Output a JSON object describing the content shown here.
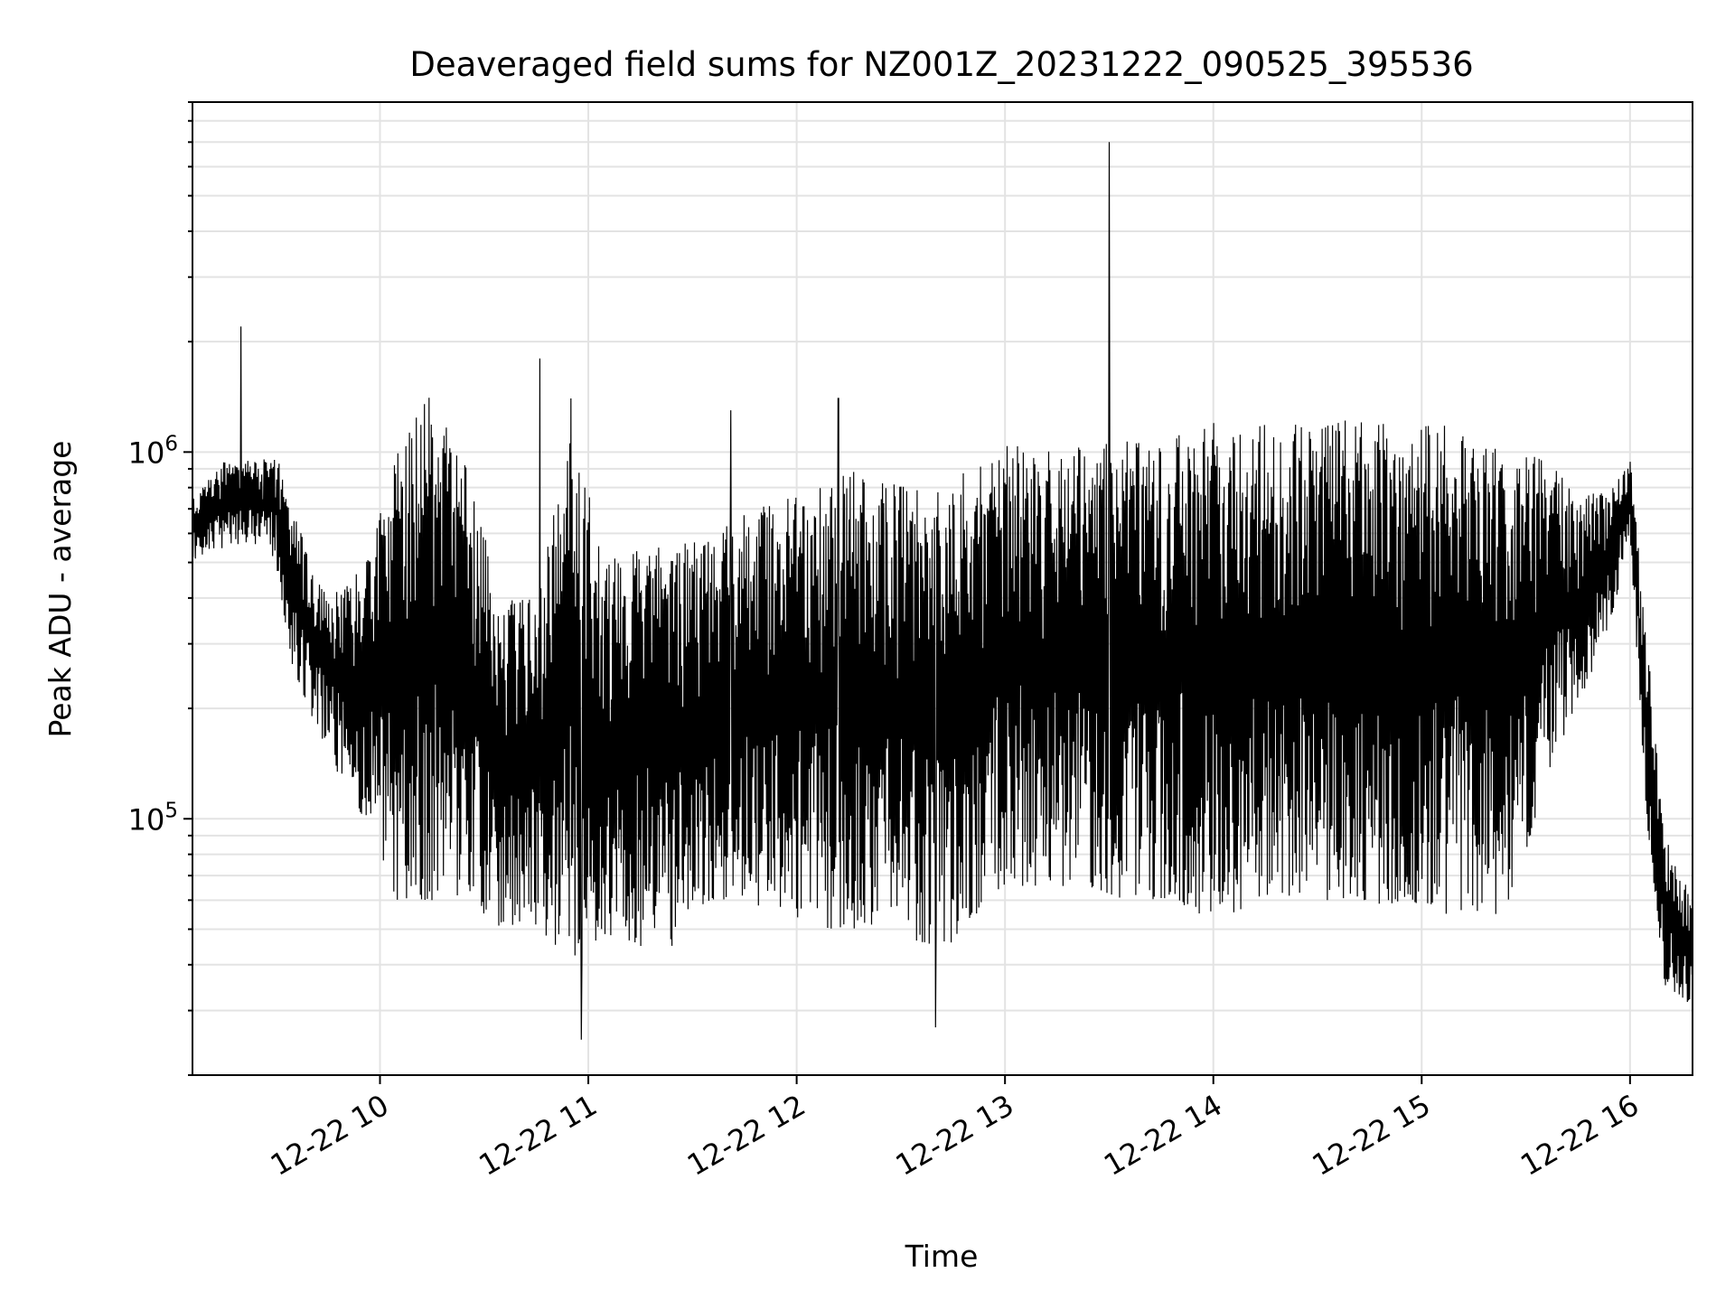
{
  "chart_data": {
    "type": "line",
    "title": "Deaveraged field sums for NZ001Z_20231222_090525_395536",
    "xlabel": "Time",
    "ylabel": "Peak ADU - average",
    "yscale": "log",
    "ylim": [
      20000,
      9000000
    ],
    "xlim": [
      "2023-12-22 09:06",
      "2023-12-22 16:18"
    ],
    "grid": true,
    "x_tick_labels": [
      "12-22 10",
      "12-22 11",
      "12-22 12",
      "12-22 13",
      "12-22 14",
      "12-22 15",
      "12-22 16"
    ],
    "y_tick_labels": [
      {
        "base": "10",
        "exp": "5",
        "value": 100000
      },
      {
        "base": "10",
        "exp": "6",
        "value": 1000000
      }
    ],
    "line_color": "#000000",
    "series": [
      {
        "sampling": "approximate per-interval envelope of a densely sampled signal",
        "x": [
          "2023-12-22 09:06",
          "2023-12-22 09:15",
          "2023-12-22 09:25",
          "2023-12-22 09:30",
          "2023-12-22 09:35",
          "2023-12-22 09:45",
          "2023-12-22 09:55",
          "2023-12-22 10:05",
          "2023-12-22 10:15",
          "2023-12-22 10:25",
          "2023-12-22 10:35",
          "2023-12-22 10:45",
          "2023-12-22 10:55",
          "2023-12-22 11:05",
          "2023-12-22 11:15",
          "2023-12-22 11:25",
          "2023-12-22 11:35",
          "2023-12-22 11:45",
          "2023-12-22 11:55",
          "2023-12-22 12:05",
          "2023-12-22 12:15",
          "2023-12-22 12:25",
          "2023-12-22 12:35",
          "2023-12-22 12:45",
          "2023-12-22 12:55",
          "2023-12-22 13:05",
          "2023-12-22 13:15",
          "2023-12-22 13:25",
          "2023-12-22 13:35",
          "2023-12-22 13:45",
          "2023-12-22 13:55",
          "2023-12-22 14:05",
          "2023-12-22 14:15",
          "2023-12-22 14:25",
          "2023-12-22 14:35",
          "2023-12-22 14:45",
          "2023-12-22 14:55",
          "2023-12-22 15:05",
          "2023-12-22 15:15",
          "2023-12-22 15:25",
          "2023-12-22 15:35",
          "2023-12-22 15:45",
          "2023-12-22 15:55",
          "2023-12-22 16:00",
          "2023-12-22 16:05",
          "2023-12-22 16:10",
          "2023-12-22 16:18"
        ],
        "y_high": [
          750000,
          950000,
          950000,
          1000000,
          700000,
          400000,
          500000,
          1000000,
          1500000,
          900000,
          400000,
          400000,
          1200000,
          500000,
          550000,
          550000,
          600000,
          700000,
          750000,
          800000,
          900000,
          850000,
          800000,
          850000,
          1000000,
          1100000,
          1000000,
          1050000,
          1100000,
          1150000,
          1200000,
          1200000,
          1200000,
          1200000,
          1250000,
          1200000,
          1200000,
          1200000,
          1150000,
          1000000,
          1000000,
          750000,
          800000,
          1000000,
          300000,
          90000,
          60000
        ],
        "y_low": [
          500000,
          550000,
          550000,
          500000,
          250000,
          150000,
          100000,
          60000,
          60000,
          60000,
          50000,
          50000,
          40000,
          45000,
          45000,
          45000,
          60000,
          60000,
          55000,
          50000,
          50000,
          45000,
          45000,
          45000,
          60000,
          65000,
          65000,
          65000,
          60000,
          60000,
          55000,
          55000,
          60000,
          60000,
          60000,
          60000,
          55000,
          55000,
          55000,
          55000,
          120000,
          200000,
          350000,
          600000,
          90000,
          35000,
          30000
        ],
        "spikes": [
          {
            "x": "2023-12-22 09:20",
            "y": 2200000
          },
          {
            "x": "2023-12-22 10:46",
            "y": 1800000
          },
          {
            "x": "2023-12-22 10:55",
            "y": 1400000
          },
          {
            "x": "2023-12-22 10:58",
            "y": 25000
          },
          {
            "x": "2023-12-22 11:41",
            "y": 1300000
          },
          {
            "x": "2023-12-22 12:12",
            "y": 1400000
          },
          {
            "x": "2023-12-22 12:40",
            "y": 27000
          },
          {
            "x": "2023-12-22 13:30",
            "y": 7000000
          }
        ]
      }
    ]
  }
}
